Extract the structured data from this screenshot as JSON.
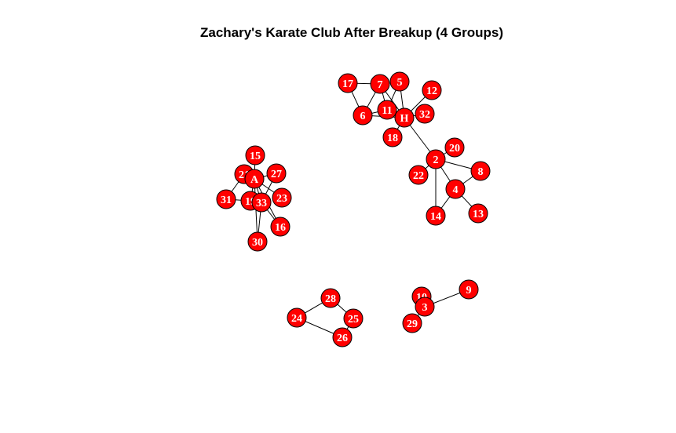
{
  "title": "Zachary's Karate Club After Breakup (4 Groups)",
  "colors": {
    "node_fill": "#ff0000",
    "node_label": "#ffffff",
    "edge": "#000000",
    "background": "#ffffff"
  },
  "nodes": [
    "17",
    "7",
    "5",
    "12",
    "6",
    "11",
    "H",
    "32",
    "18",
    "20",
    "2",
    "8",
    "22",
    "4",
    "14",
    "13",
    "15",
    "21",
    "27",
    "A",
    "31",
    "19",
    "33",
    "23",
    "16",
    "30",
    "28",
    "24",
    "25",
    "26",
    "9",
    "10",
    "3",
    "29"
  ],
  "edges": [
    [
      "17",
      "7"
    ],
    [
      "17",
      "6"
    ],
    [
      "7",
      "6"
    ],
    [
      "7",
      "11"
    ],
    [
      "7",
      "H"
    ],
    [
      "5",
      "11"
    ],
    [
      "5",
      "H"
    ],
    [
      "12",
      "H"
    ],
    [
      "6",
      "11"
    ],
    [
      "6",
      "H"
    ],
    [
      "11",
      "H"
    ],
    [
      "H",
      "32"
    ],
    [
      "H",
      "18"
    ],
    [
      "H",
      "2"
    ],
    [
      "2",
      "20"
    ],
    [
      "2",
      "8"
    ],
    [
      "2",
      "22"
    ],
    [
      "2",
      "4"
    ],
    [
      "2",
      "14"
    ],
    [
      "8",
      "4"
    ],
    [
      "4",
      "14"
    ],
    [
      "4",
      "13"
    ],
    [
      "15",
      "A"
    ],
    [
      "21",
      "A"
    ],
    [
      "21",
      "31"
    ],
    [
      "27",
      "A"
    ],
    [
      "27",
      "33"
    ],
    [
      "A",
      "19"
    ],
    [
      "A",
      "33"
    ],
    [
      "A",
      "23"
    ],
    [
      "A",
      "16"
    ],
    [
      "A",
      "30"
    ],
    [
      "31",
      "19"
    ],
    [
      "19",
      "33"
    ],
    [
      "33",
      "30"
    ],
    [
      "33",
      "16"
    ],
    [
      "28",
      "24"
    ],
    [
      "28",
      "25"
    ],
    [
      "24",
      "26"
    ],
    [
      "25",
      "26"
    ],
    [
      "9",
      "3"
    ],
    [
      "10",
      "3"
    ],
    [
      "3",
      "29"
    ]
  ]
}
